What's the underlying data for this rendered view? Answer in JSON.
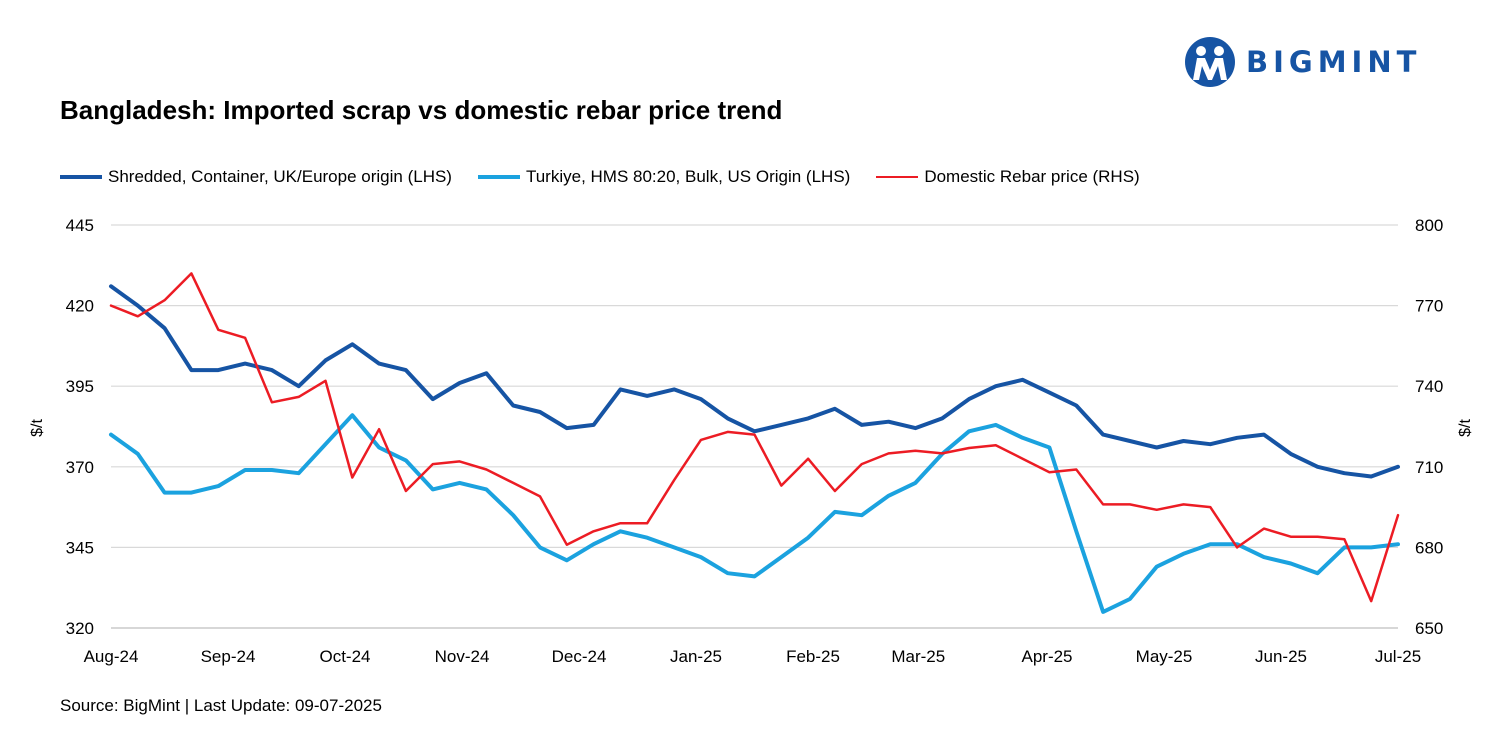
{
  "brand": {
    "name": "BIGMINT",
    "color": "#1654a4"
  },
  "chart_data": {
    "type": "line",
    "title": "Bangladesh: Imported scrap vs domestic rebar price trend",
    "source": "Source: BigMint | Last Update: 09-07-2025",
    "ylabel_left": "$/t",
    "ylabel_right": "$/t",
    "ylim_left": [
      320,
      445
    ],
    "ylim_right": [
      650,
      800
    ],
    "yticks_left": [
      320,
      345,
      370,
      395,
      420,
      445
    ],
    "yticks_right": [
      650,
      680,
      710,
      740,
      770,
      800
    ],
    "grid": true,
    "legend_position": "top-left",
    "x_labels": [
      "Aug-24",
      "Sep-24",
      "Oct-24",
      "Nov-24",
      "Dec-24",
      "Jan-25",
      "Feb-25",
      "Mar-25",
      "Apr-25",
      "May-25",
      "Jun-25",
      "Jul-25"
    ],
    "x_label_index": [
      0,
      5,
      10,
      15,
      20,
      25,
      30,
      34.5,
      40,
      45,
      50,
      55
    ],
    "x_count": 56,
    "series": [
      {
        "name": "Shredded, Container, UK/Europe origin (LHS)",
        "axis": "left",
        "color": "#1654a4",
        "width": 4,
        "values": [
          426,
          420,
          413,
          400,
          400,
          402,
          400,
          395,
          403,
          408,
          402,
          400,
          391,
          396,
          399,
          389,
          387,
          382,
          383,
          394,
          392,
          394,
          391,
          385,
          381,
          383,
          385,
          388,
          383,
          384,
          382,
          385,
          391,
          395,
          397,
          393,
          389,
          380,
          378,
          376,
          378,
          377,
          379,
          380,
          374,
          370,
          368,
          367,
          370
        ]
      },
      {
        "name": "Turkiye, HMS 80:20, Bulk, US Origin (LHS)",
        "axis": "left",
        "color": "#1ba2df",
        "width": 4,
        "values": [
          380,
          374,
          362,
          362,
          364,
          369,
          369,
          368,
          377,
          386,
          376,
          372,
          363,
          365,
          363,
          355,
          345,
          341,
          346,
          350,
          348,
          345,
          342,
          337,
          336,
          342,
          348,
          356,
          355,
          361,
          365,
          374,
          381,
          383,
          379,
          376,
          350,
          325,
          329,
          339,
          343,
          346,
          346,
          342,
          340,
          337,
          345,
          345,
          346
        ]
      },
      {
        "name": "Domestic Rebar price (RHS)",
        "axis": "right",
        "color": "#ec1c24",
        "width": 2.5,
        "values": [
          770,
          766,
          772,
          782,
          761,
          758,
          734,
          736,
          742,
          706,
          724,
          701,
          711,
          712,
          709,
          704,
          699,
          681,
          686,
          689,
          689,
          705,
          720,
          723,
          722,
          703,
          713,
          701,
          711,
          715,
          716,
          715,
          717,
          718,
          713,
          708,
          709,
          696,
          696,
          694,
          696,
          695,
          680,
          687,
          684,
          684,
          683,
          660,
          692
        ]
      }
    ]
  }
}
